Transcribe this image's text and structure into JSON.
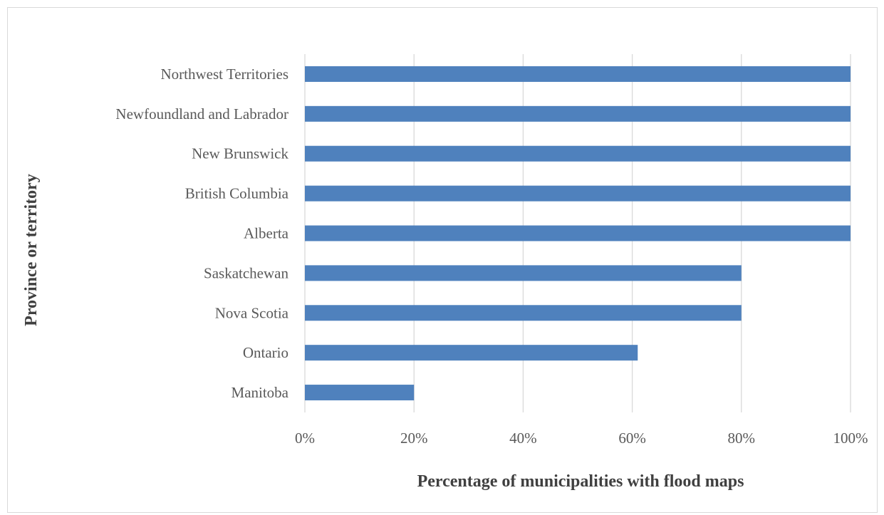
{
  "chart_data": {
    "type": "bar",
    "orientation": "horizontal",
    "categories": [
      "Northwest Territories",
      "Newfoundland and Labrador",
      "New Brunswick",
      "British Columbia",
      "Alberta",
      "Saskatchewan",
      "Nova Scotia",
      "Ontario",
      "Manitoba"
    ],
    "values": [
      100,
      100,
      100,
      100,
      100,
      80,
      80,
      61,
      20
    ],
    "xlabel": "Percentage of municipalities with flood maps",
    "ylabel": "Province or territory",
    "xlim": [
      0,
      100
    ],
    "xticks": [
      0,
      20,
      40,
      60,
      80,
      100
    ],
    "xtick_labels": [
      "0%",
      "20%",
      "40%",
      "60%",
      "80%",
      "100%"
    ],
    "grid": "vertical",
    "legend": "none",
    "bar_color": "#4f81bd"
  }
}
